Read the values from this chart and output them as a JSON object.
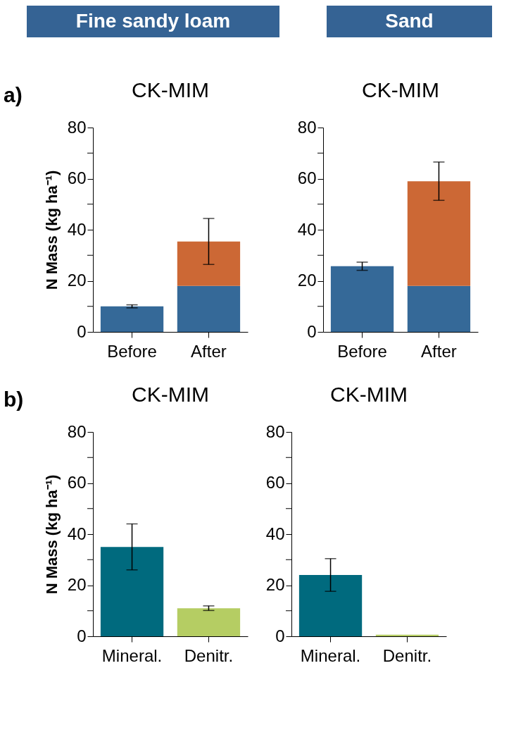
{
  "chart_data": [
    {
      "type": "bar",
      "title": "CK-MIM",
      "subtitle": "Fine sandy loam",
      "annotations": [
        "a)"
      ],
      "ylabel": "N Mass (kg ha⁻¹)",
      "stacked": true,
      "categories": [
        "Before",
        "After"
      ],
      "series": [
        {
          "color": "#356998",
          "values": [
            10,
            18
          ],
          "errors": [
            0.6,
            null
          ]
        },
        {
          "color": "#cc6835",
          "values": [
            null,
            17.4
          ],
          "errors": [
            null,
            9
          ]
        }
      ],
      "ylim": [
        0,
        80
      ],
      "yticks": [
        0,
        {
          "value": 10,
          "label": null
        },
        20,
        {
          "value": 30,
          "label": null
        },
        40,
        {
          "value": 50,
          "label": null
        },
        60,
        {
          "value": 70,
          "label": null
        },
        80
      ]
    },
    {
      "type": "bar",
      "title": "CK-MIM",
      "subtitle": "Sand",
      "stacked": true,
      "categories": [
        "Before",
        "After"
      ],
      "series": [
        {
          "color": "#356998",
          "values": [
            25.7,
            18
          ],
          "errors": [
            1.6,
            null
          ]
        },
        {
          "color": "#cc6835",
          "values": [
            null,
            41
          ],
          "errors": [
            null,
            7.5
          ]
        }
      ],
      "ylim": [
        0,
        80
      ],
      "yticks": [
        0,
        {
          "value": 10,
          "label": null
        },
        20,
        {
          "value": 30,
          "label": null
        },
        40,
        {
          "value": 50,
          "label": null
        },
        60,
        {
          "value": 70,
          "label": null
        },
        80
      ]
    },
    {
      "type": "bar",
      "title": "CK-MIM",
      "annotations": [
        "b)"
      ],
      "ylabel": "N Mass (kg ha⁻¹)",
      "categories": [
        "Mineral.",
        "Denitr."
      ],
      "series": [
        {
          "colors": [
            "#006a7e",
            "#b5cd63"
          ],
          "values": [
            35,
            11
          ],
          "errors": [
            9,
            0.9
          ]
        }
      ],
      "ylim": [
        0,
        80
      ],
      "yticks": [
        0,
        {
          "value": 10,
          "label": null
        },
        20,
        {
          "value": 30,
          "label": null
        },
        40,
        {
          "value": 50,
          "label": null
        },
        60,
        {
          "value": 70,
          "label": null
        },
        80
      ]
    },
    {
      "type": "bar",
      "title": "CK-MIM",
      "categories": [
        "Mineral.",
        "Denitr."
      ],
      "series": [
        {
          "colors": [
            "#006a7e",
            "#b5cd63"
          ],
          "values": [
            24,
            0.6
          ],
          "errors": [
            6.4,
            null
          ]
        }
      ],
      "ylim": [
        0,
        80
      ],
      "yticks": [
        0,
        {
          "value": 10,
          "label": null
        },
        20,
        {
          "value": 30,
          "label": null
        },
        40,
        {
          "value": 50,
          "label": null
        },
        60,
        {
          "value": 70,
          "label": null
        },
        80
      ]
    }
  ]
}
